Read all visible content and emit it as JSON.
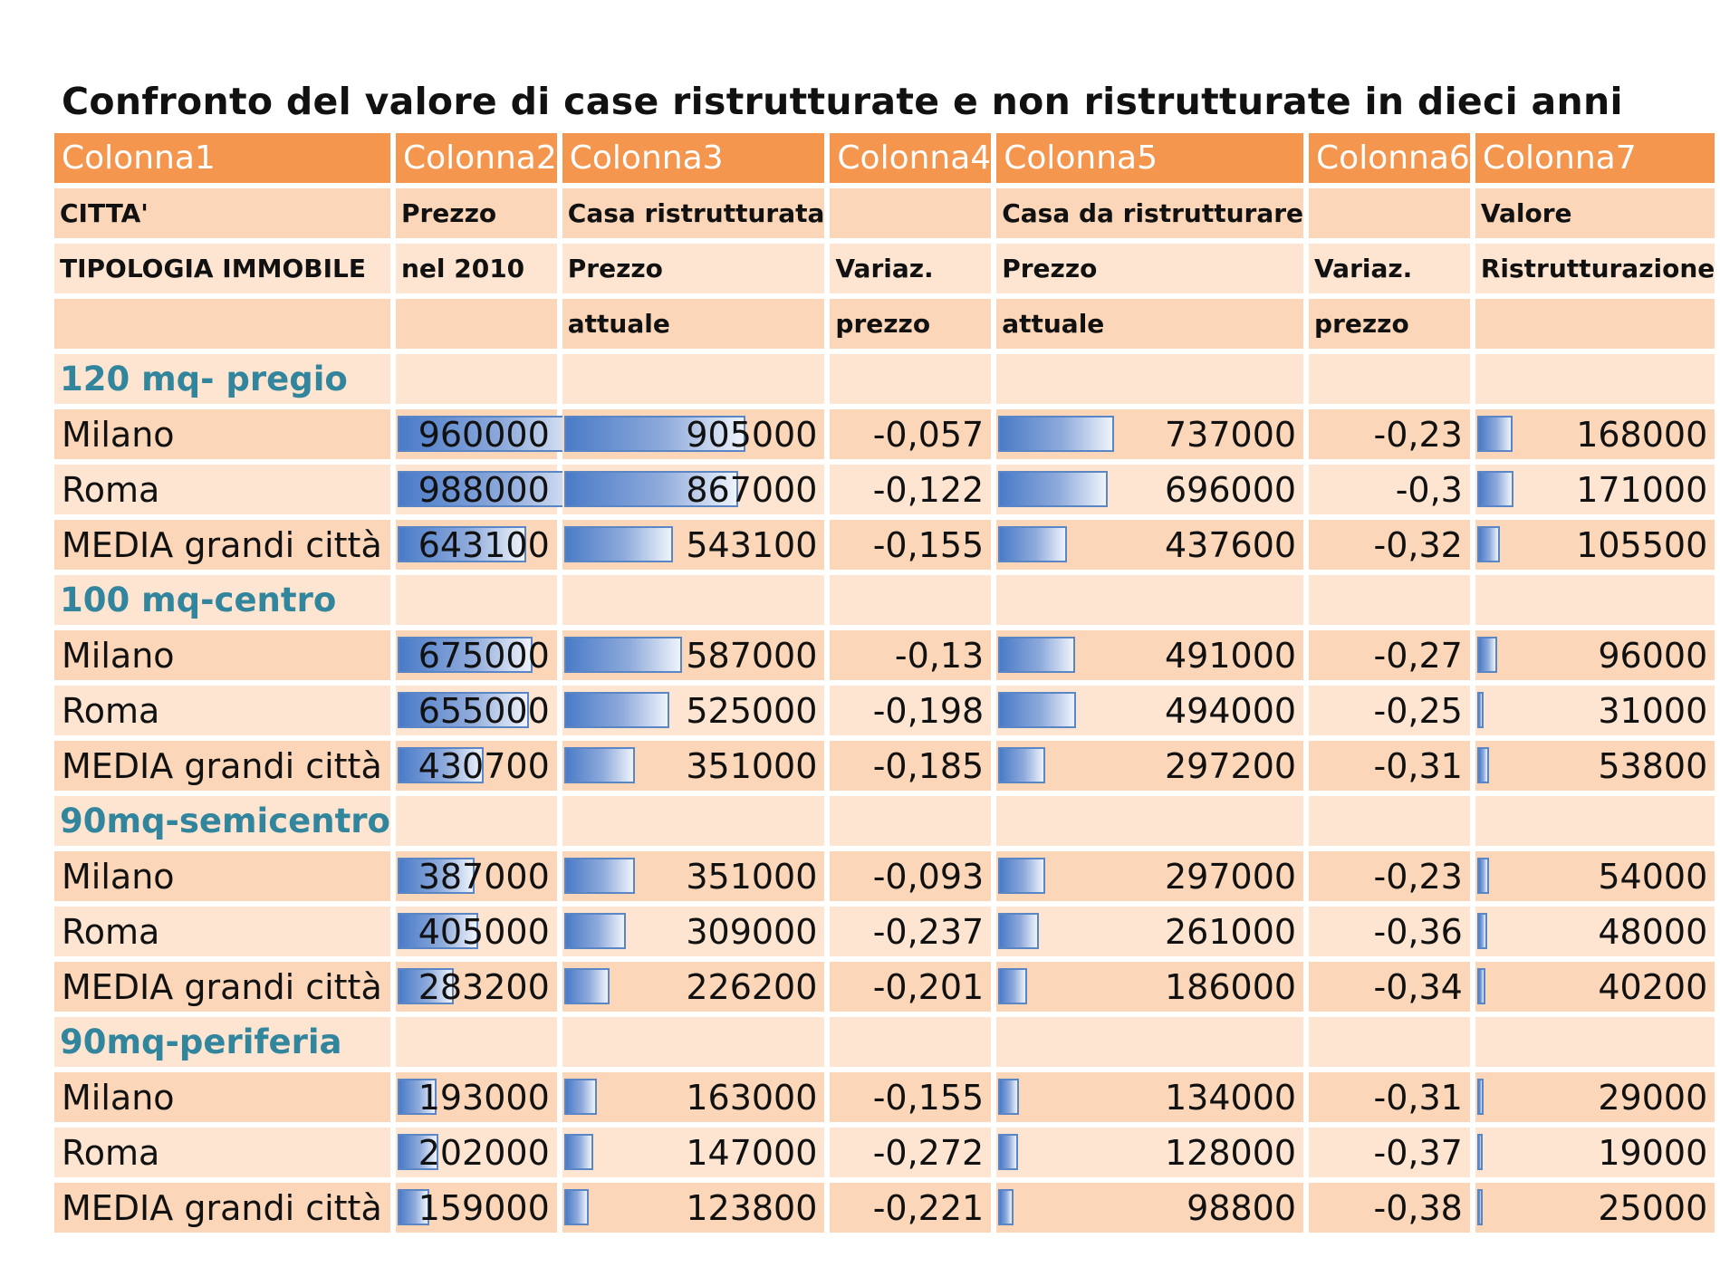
{
  "title": "Confronto del  valore di  case ristrutturate e non ristrutturate in dieci anni",
  "colors": {
    "header_orange": "#f5964f",
    "row_dark": "#fbd6b8",
    "row_light": "#fde5d2",
    "section_text": "#31859c",
    "databar": "#4a7bc8"
  },
  "column_headers": [
    "Colonna1",
    "Colonna2",
    "Colonna3",
    "Colonna4",
    "Colonna5",
    "Colonna6",
    "Colonna7"
  ],
  "header_rows": [
    [
      "CITTA'",
      "Prezzo",
      "Casa ristrutturata",
      "",
      "Casa da ristrutturare",
      "",
      "Valore"
    ],
    [
      "TIPOLOGIA IMMOBILE",
      "nel 2010",
      "Prezzo",
      "Variaz.",
      "Prezzo",
      "Variaz.",
      "Ristrutturazione"
    ],
    [
      "",
      "",
      "attuale",
      "prezzo",
      "attuale",
      "prezzo",
      ""
    ]
  ],
  "sections": [
    {
      "label": "120 mq- pregio",
      "rows": [
        {
          "city": "Milano",
          "values": [
            "960000",
            "905000",
            "-0,057",
            "737000",
            "-0,23",
            "168000"
          ]
        },
        {
          "city": "Roma",
          "values": [
            "988000",
            "867000",
            "-0,122",
            "696000",
            "-0,3",
            "171000"
          ]
        },
        {
          "city": "MEDIA grandi città",
          "values": [
            "643100",
            "543100",
            "-0,155",
            "437600",
            "-0,32",
            "105500"
          ]
        }
      ]
    },
    {
      "label": "100 mq-centro",
      "rows": [
        {
          "city": "Milano",
          "values": [
            "675000",
            "587000",
            "-0,13",
            "491000",
            "-0,27",
            "96000"
          ]
        },
        {
          "city": "Roma",
          "values": [
            "655000",
            "525000",
            "-0,198",
            "494000",
            "-0,25",
            "31000"
          ]
        },
        {
          "city": "MEDIA grandi città",
          "values": [
            "430700",
            "351000",
            "-0,185",
            "297200",
            "-0,31",
            "53800"
          ]
        }
      ]
    },
    {
      "label": "90mq-semicentro",
      "rows": [
        {
          "city": "Milano",
          "values": [
            "387000",
            "351000",
            "-0,093",
            "297000",
            "-0,23",
            "54000"
          ]
        },
        {
          "city": "Roma",
          "values": [
            "405000",
            "309000",
            "-0,237",
            "261000",
            "-0,36",
            "48000"
          ]
        },
        {
          "city": "MEDIA grandi città",
          "values": [
            "283200",
            "226200",
            "-0,201",
            "186000",
            "-0,34",
            "40200"
          ]
        }
      ]
    },
    {
      "label": "90mq-periferia",
      "rows": [
        {
          "city": "Milano",
          "values": [
            "193000",
            "163000",
            "-0,155",
            "134000",
            "-0,31",
            "29000"
          ]
        },
        {
          "city": "Roma",
          "values": [
            "202000",
            "147000",
            "-0,272",
            "128000",
            "-0,37",
            "19000"
          ]
        },
        {
          "city": "MEDIA grandi città",
          "values": [
            "159000",
            "123800",
            "-0,221",
            "98800",
            "-0,38",
            "25000"
          ]
        }
      ]
    }
  ]
}
